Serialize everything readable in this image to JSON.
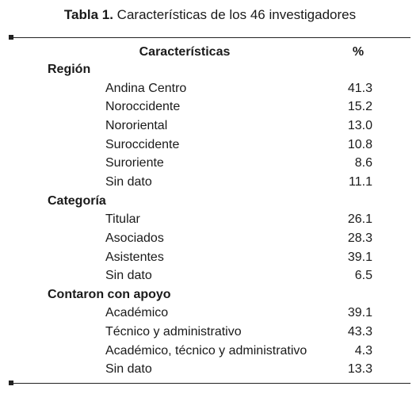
{
  "title": {
    "label": "Tabla 1.",
    "text": "Características de los 46 investigadores"
  },
  "table": {
    "header": [
      "Características",
      "%"
    ],
    "groups": [
      {
        "name": "Región",
        "rows": [
          [
            "Andina Centro",
            "41.3"
          ],
          [
            "Noroccidente",
            "15.2"
          ],
          [
            "Nororiental",
            "13.0"
          ],
          [
            "Suroccidente",
            "10.8"
          ],
          [
            "Suroriente",
            "8.6"
          ],
          [
            "Sin dato",
            "11.1"
          ]
        ]
      },
      {
        "name": "Categoría",
        "rows": [
          [
            "Titular",
            "26.1"
          ],
          [
            "Asociados",
            "28.3"
          ],
          [
            "Asistentes",
            "39.1"
          ],
          [
            "Sin dato",
            "6.5"
          ]
        ]
      },
      {
        "name": "Contaron con apoyo",
        "rows": [
          [
            "Académico",
            "39.1"
          ],
          [
            "Técnico y administrativo",
            "43.3"
          ],
          [
            "Académico, técnico y administrativo",
            "4.3"
          ],
          [
            "Sin dato",
            "13.3"
          ]
        ]
      }
    ]
  }
}
